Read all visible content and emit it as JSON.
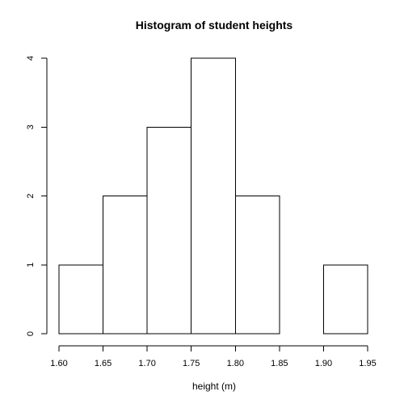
{
  "chart_data": {
    "type": "bar",
    "title": "Histogram of student heights",
    "xlabel": "height (m)",
    "ylabel": "",
    "bins": [
      {
        "start": 1.6,
        "end": 1.65,
        "count": 1
      },
      {
        "start": 1.65,
        "end": 1.7,
        "count": 2
      },
      {
        "start": 1.7,
        "end": 1.75,
        "count": 3
      },
      {
        "start": 1.75,
        "end": 1.8,
        "count": 4
      },
      {
        "start": 1.8,
        "end": 1.85,
        "count": 2
      },
      {
        "start": 1.85,
        "end": 1.9,
        "count": 0
      },
      {
        "start": 1.9,
        "end": 1.95,
        "count": 1
      }
    ],
    "xlim": [
      1.6,
      1.95
    ],
    "ylim": [
      0,
      4
    ],
    "x_ticks": [
      "1.60",
      "1.65",
      "1.70",
      "1.75",
      "1.80",
      "1.85",
      "1.90",
      "1.95"
    ],
    "y_ticks": [
      "0",
      "1",
      "2",
      "3",
      "4"
    ],
    "grid": false,
    "legend": "none",
    "colors": {
      "bar_fill": "#ffffff",
      "bar_stroke": "#000000"
    }
  }
}
